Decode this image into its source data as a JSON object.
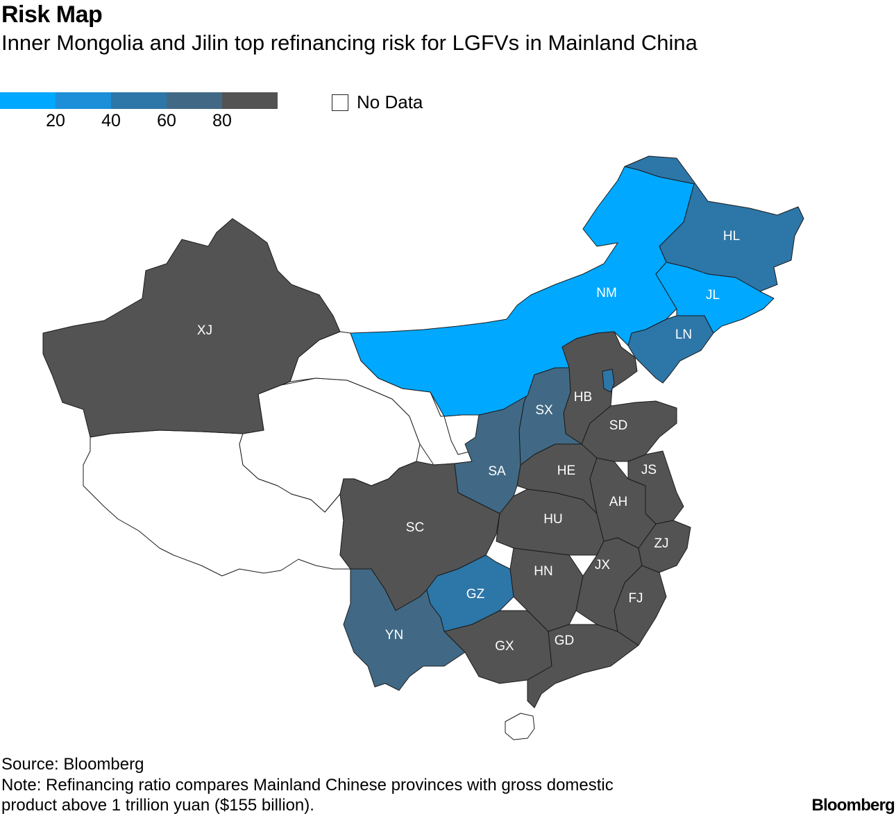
{
  "header": {
    "title": "Risk Map",
    "subtitle": "Inner Mongolia and Jilin top refinancing risk for LGFVs in Mainland China"
  },
  "legend": {
    "colors": [
      "#00a8ff",
      "#1c8fd8",
      "#2d76a8",
      "#416985",
      "#535353"
    ],
    "ticks": [
      "20",
      "40",
      "60",
      "80"
    ],
    "no_data_label": "No Data"
  },
  "map_data": {
    "type": "choropleth",
    "metric": "refinancing risk",
    "bins": [
      "0-20",
      "20-40",
      "40-60",
      "60-80",
      "80-100"
    ],
    "regions": [
      {
        "code": "XJ",
        "bin": "80-100"
      },
      {
        "code": "NM",
        "bin": "0-20"
      },
      {
        "code": "HL",
        "bin": "40-60"
      },
      {
        "code": "JL",
        "bin": "0-20"
      },
      {
        "code": "LN",
        "bin": "40-60"
      },
      {
        "code": "HB",
        "bin": "80-100"
      },
      {
        "code": "SX",
        "bin": "60-80"
      },
      {
        "code": "SD",
        "bin": "80-100"
      },
      {
        "code": "SA",
        "bin": "60-80"
      },
      {
        "code": "HE",
        "bin": "80-100"
      },
      {
        "code": "JS",
        "bin": "80-100"
      },
      {
        "code": "AH",
        "bin": "80-100"
      },
      {
        "code": "SC",
        "bin": "80-100"
      },
      {
        "code": "HU",
        "bin": "80-100"
      },
      {
        "code": "ZJ",
        "bin": "80-100"
      },
      {
        "code": "JX",
        "bin": "80-100"
      },
      {
        "code": "HN",
        "bin": "80-100"
      },
      {
        "code": "GZ",
        "bin": "40-60"
      },
      {
        "code": "FJ",
        "bin": "80-100"
      },
      {
        "code": "YN",
        "bin": "60-80"
      },
      {
        "code": "GX",
        "bin": "80-100"
      },
      {
        "code": "GD",
        "bin": "80-100"
      }
    ]
  },
  "footer": {
    "source": "Source: Bloomberg",
    "note_line1": "Note: Refinancing ratio compares Mainland Chinese provinces with gross domestic",
    "note_line2": "product above 1 trillion yuan ($155 billion).",
    "brand": "Bloomberg"
  }
}
